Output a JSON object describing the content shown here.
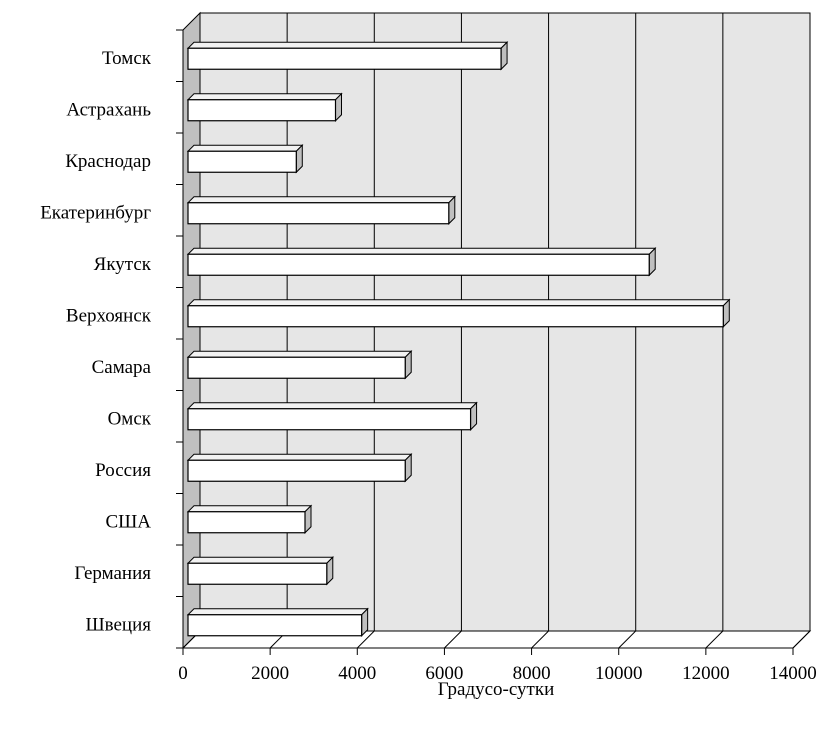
{
  "chart_data": {
    "type": "bar",
    "orientation": "horizontal",
    "style": "3d",
    "title": "",
    "xlabel": "Градусо-сутки",
    "ylabel": "",
    "categories": [
      "Томск",
      "Астрахань",
      "Краснодар",
      "Екатеринбург",
      "Якутск",
      "Верхоянск",
      "Самара",
      "Омск",
      "Россия",
      "США",
      "Германия",
      "Швеция"
    ],
    "values": [
      7300,
      3500,
      2600,
      6100,
      10700,
      12400,
      5100,
      6600,
      5100,
      2800,
      3300,
      4100
    ],
    "xlim": [
      0,
      14000
    ],
    "xticks": [
      0,
      2000,
      4000,
      6000,
      8000,
      10000,
      12000,
      14000
    ],
    "xtick_labels": [
      "0",
      "2000",
      "4000",
      "6000",
      "8000",
      "10000",
      "12000",
      "14000"
    ],
    "grid": "vertical",
    "legend": "none",
    "colors": {
      "wall": "#e6e6e6",
      "side_wall": "#c0c0c0",
      "bar_front": "#ffffff",
      "bar_end": "#bfbfbf",
      "bar_top": "#f2f2f2",
      "outline": "#000000"
    }
  }
}
